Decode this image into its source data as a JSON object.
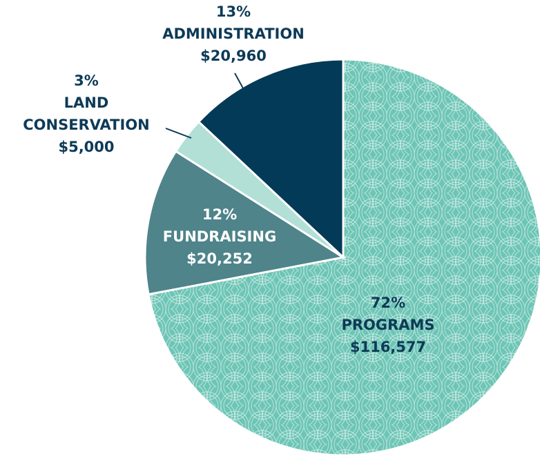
{
  "chart_data": {
    "type": "pie",
    "categories": [
      "PROGRAMS",
      "FUNDRAISING",
      "LAND\nCONSERVATION",
      "ADMINISTRATION"
    ],
    "values": [
      72,
      12,
      3,
      13
    ],
    "value_labels": [
      "72%",
      "12%",
      "3%",
      "13%"
    ],
    "amounts": [
      116577,
      20252,
      5000,
      20960
    ],
    "amount_labels": [
      "$116,577",
      "$20,252",
      "$5,000",
      "$20,960"
    ],
    "colors": [
      "#6cc5b5",
      "#4e848a",
      "#b2dfd6",
      "#033a57"
    ]
  }
}
